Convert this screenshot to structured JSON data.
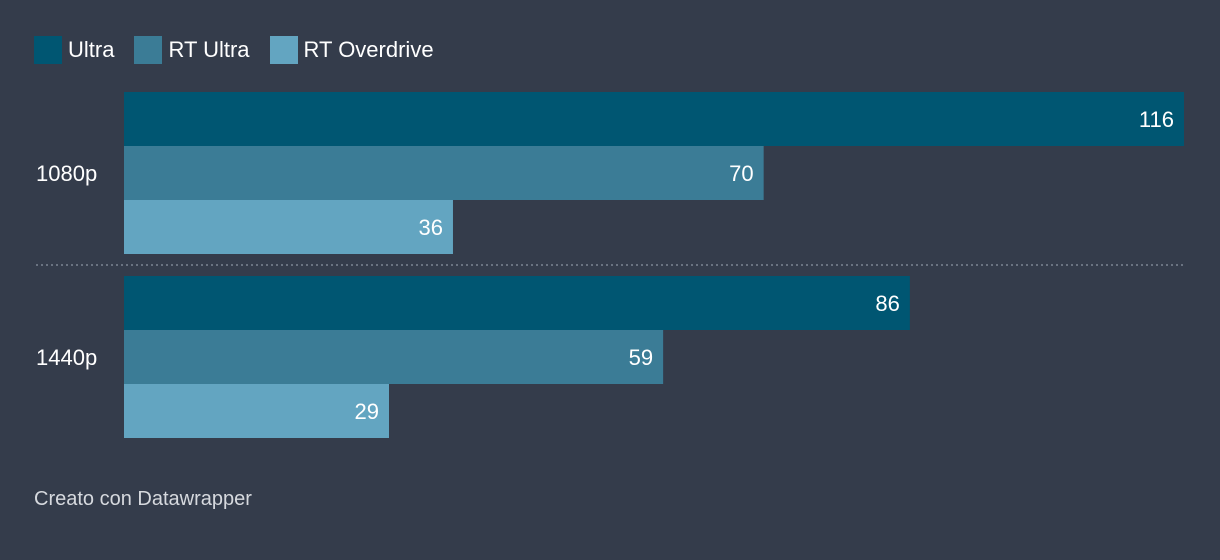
{
  "chart_data": {
    "type": "bar",
    "orientation": "horizontal",
    "categories": [
      "1080p",
      "1440p"
    ],
    "series": [
      {
        "name": "Ultra",
        "color": "#005672",
        "values": [
          116,
          86
        ]
      },
      {
        "name": "RT Ultra",
        "color": "#3b7c96",
        "values": [
          70,
          59
        ]
      },
      {
        "name": "RT Overdrive",
        "color": "#63a5c1",
        "values": [
          36,
          29
        ]
      }
    ],
    "xlim": [
      0,
      116
    ],
    "grid": false,
    "legend": "top-left",
    "title": ""
  },
  "footer": {
    "credit": "Creato con Datawrapper"
  }
}
